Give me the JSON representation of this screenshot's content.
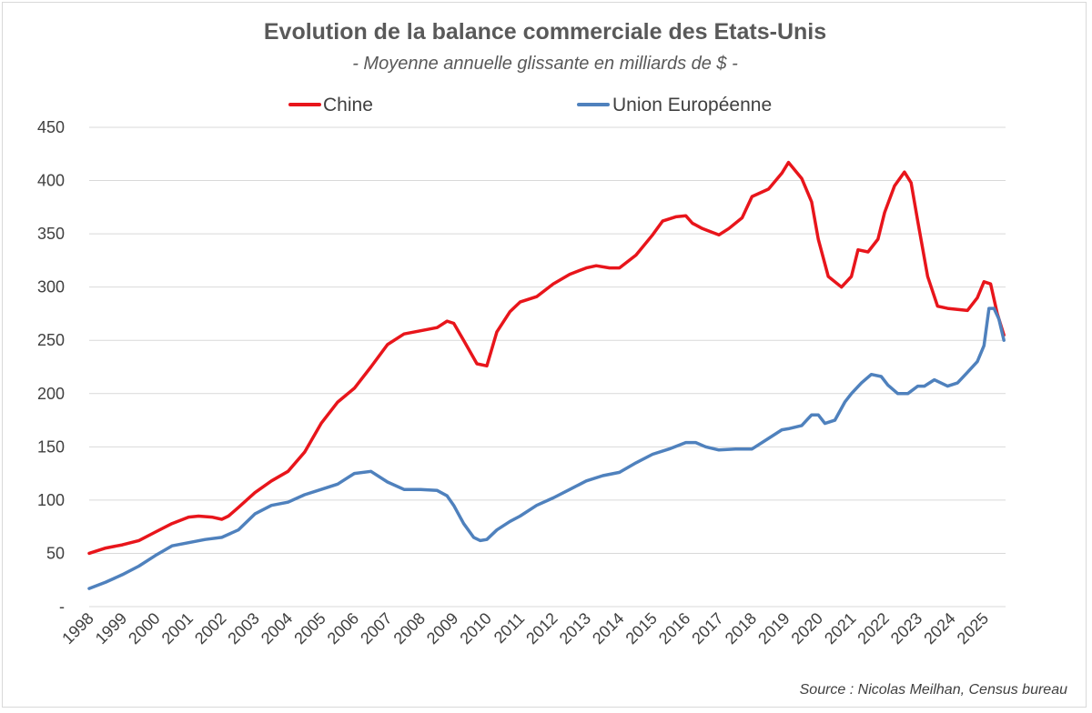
{
  "chart_data": {
    "type": "line",
    "title": "Evolution de la balance commerciale des Etats-Unis",
    "subtitle": "- Moyenne annuelle glissante en milliards de $ -",
    "source": "Source : Nicolas Meilhan, Census bureau",
    "ylim": [
      0,
      450
    ],
    "yticks": [
      0,
      50,
      100,
      150,
      200,
      250,
      300,
      350,
      400,
      450
    ],
    "ytick_labels": [
      "-",
      "50",
      "100",
      "150",
      "200",
      "250",
      "300",
      "350",
      "400",
      "450"
    ],
    "xlim": [
      1998,
      2025.65
    ],
    "xtick_labels": [
      "1998",
      "1999",
      "2000",
      "2001",
      "2002",
      "2003",
      "2004",
      "2005",
      "2006",
      "2007",
      "2008",
      "2009",
      "2010",
      "2011",
      "2012",
      "2013",
      "2014",
      "2015",
      "2016",
      "2017",
      "2018",
      "2019",
      "2020",
      "2021",
      "2022",
      "2023",
      "2024",
      "2025"
    ],
    "grid": true,
    "legend_position": "top",
    "series": [
      {
        "name": "Chine",
        "color": "#e8151b",
        "x": [
          1998.0,
          1998.5,
          1999.0,
          1999.5,
          2000.0,
          2000.5,
          2001.0,
          2001.3,
          2001.7,
          2002.0,
          2002.2,
          2002.5,
          2003.0,
          2003.5,
          2004.0,
          2004.5,
          2005.0,
          2005.5,
          2006.0,
          2006.5,
          2007.0,
          2007.5,
          2008.0,
          2008.5,
          2008.8,
          2009.0,
          2009.3,
          2009.7,
          2010.0,
          2010.3,
          2010.7,
          2011.0,
          2011.5,
          2012.0,
          2012.5,
          2013.0,
          2013.3,
          2013.7,
          2014.0,
          2014.5,
          2015.0,
          2015.3,
          2015.7,
          2016.0,
          2016.2,
          2016.5,
          2017.0,
          2017.3,
          2017.7,
          2018.0,
          2018.5,
          2018.9,
          2019.1,
          2019.5,
          2019.8,
          2020.0,
          2020.3,
          2020.7,
          2021.0,
          2021.2,
          2021.5,
          2021.8,
          2022.0,
          2022.3,
          2022.6,
          2022.8,
          2023.0,
          2023.3,
          2023.6,
          2023.9,
          2024.2,
          2024.5,
          2024.8,
          2025.0,
          2025.2,
          2025.4,
          2025.6
        ],
        "y": [
          50,
          55,
          58,
          62,
          70,
          78,
          84,
          85,
          84,
          82,
          85,
          93,
          107,
          118,
          127,
          145,
          172,
          192,
          205,
          225,
          246,
          256,
          259,
          262,
          268,
          266,
          250,
          228,
          226,
          258,
          277,
          286,
          291,
          303,
          312,
          318,
          320,
          318,
          318,
          330,
          349,
          362,
          366,
          367,
          360,
          355,
          349,
          355,
          365,
          385,
          392,
          407,
          417,
          402,
          380,
          345,
          310,
          300,
          310,
          335,
          333,
          345,
          370,
          395,
          408,
          398,
          362,
          310,
          282,
          280,
          279,
          278,
          290,
          305,
          303,
          275,
          255
        ]
      },
      {
        "name": "Union Européenne",
        "color": "#4f81bd",
        "x": [
          1998.0,
          1998.5,
          1999.0,
          1999.5,
          2000.0,
          2000.5,
          2001.0,
          2001.5,
          2002.0,
          2002.5,
          2003.0,
          2003.5,
          2004.0,
          2004.5,
          2005.0,
          2005.5,
          2006.0,
          2006.5,
          2007.0,
          2007.5,
          2008.0,
          2008.5,
          2008.8,
          2009.0,
          2009.3,
          2009.6,
          2009.8,
          2010.0,
          2010.3,
          2010.7,
          2011.0,
          2011.5,
          2012.0,
          2012.5,
          2013.0,
          2013.5,
          2014.0,
          2014.5,
          2015.0,
          2015.5,
          2016.0,
          2016.3,
          2016.6,
          2017.0,
          2017.5,
          2018.0,
          2018.5,
          2018.9,
          2019.1,
          2019.5,
          2019.8,
          2020.0,
          2020.2,
          2020.5,
          2020.8,
          2021.0,
          2021.3,
          2021.6,
          2021.9,
          2022.1,
          2022.4,
          2022.7,
          2023.0,
          2023.2,
          2023.5,
          2023.9,
          2024.2,
          2024.5,
          2024.8,
          2025.0,
          2025.15,
          2025.3,
          2025.45,
          2025.6
        ],
        "y": [
          17,
          23,
          30,
          38,
          48,
          57,
          60,
          63,
          65,
          72,
          87,
          95,
          98,
          105,
          110,
          115,
          125,
          127,
          117,
          110,
          110,
          109,
          104,
          95,
          78,
          65,
          62,
          63,
          72,
          80,
          85,
          95,
          102,
          110,
          118,
          123,
          126,
          135,
          143,
          148,
          154,
          154,
          150,
          147,
          148,
          148,
          158,
          166,
          167,
          170,
          180,
          180,
          172,
          175,
          192,
          200,
          210,
          218,
          216,
          208,
          200,
          200,
          207,
          207,
          213,
          207,
          210,
          220,
          230,
          245,
          280,
          280,
          270,
          250
        ]
      }
    ]
  }
}
